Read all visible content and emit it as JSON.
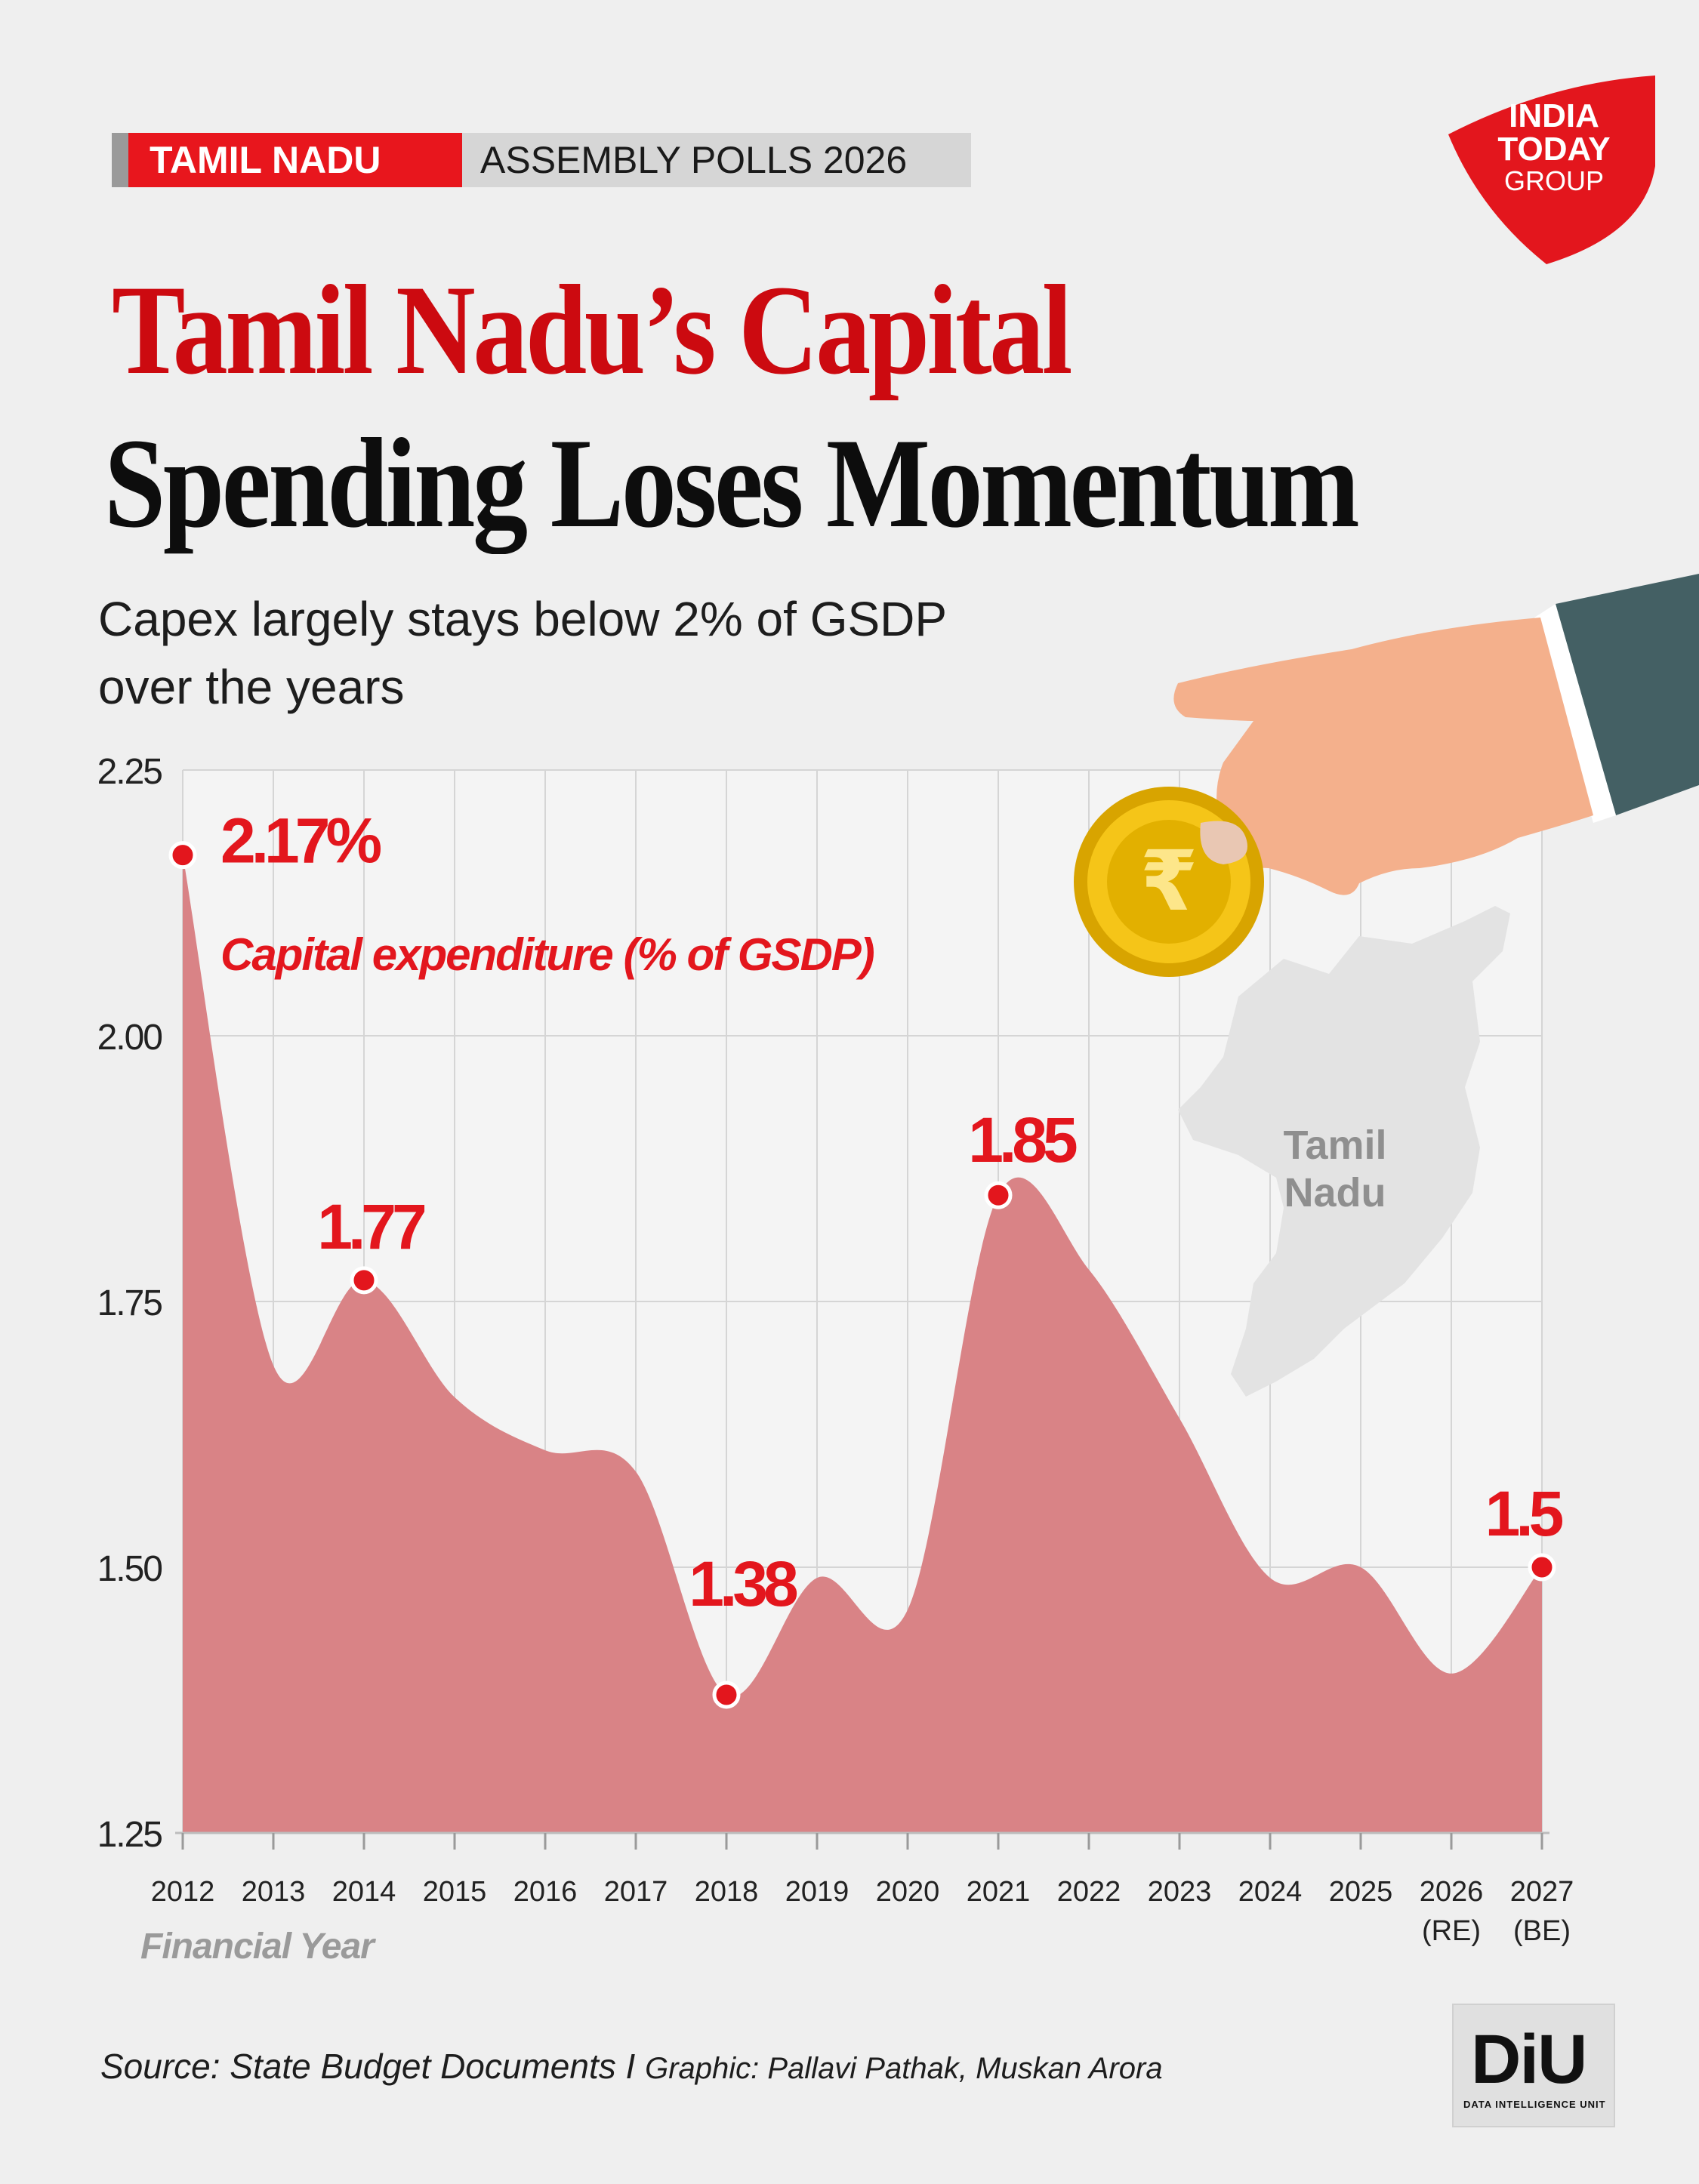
{
  "tag": {
    "state": "TAMIL NADU",
    "event": "ASSEMBLY POLLS  2026"
  },
  "logo": {
    "line1": "INDIA",
    "line2": "TODAY",
    "line3": "GROUP"
  },
  "title": {
    "line1": "Tamil Nadu’s Capital",
    "line2": "Spending Loses Momentum"
  },
  "subtitle": "Capex largely stays below 2% of GSDP over the years",
  "map_label": {
    "line1": "Tamil",
    "line2": "Nadu"
  },
  "coin_symbol": "₹",
  "chart_data": {
    "type": "area",
    "series_name": "Capital expenditure  (% of GSDP)",
    "xlabel": "Financial Year",
    "ylabel": "",
    "ylim": [
      1.25,
      2.25
    ],
    "yticks": [
      "2.25",
      "2.00",
      "1.75",
      "1.50",
      "1.25"
    ],
    "ytick_values": [
      2.25,
      2.0,
      1.75,
      1.5,
      1.25
    ],
    "categories": [
      "2012",
      "2013",
      "2014",
      "2015",
      "2016",
      "2017",
      "2018",
      "2019",
      "2020",
      "2021",
      "2022",
      "2023",
      "2024",
      "2025",
      "2026",
      "2027"
    ],
    "category_notes": [
      "",
      "",
      "",
      "",
      "",
      "",
      "",
      "",
      "",
      "",
      "",
      "",
      "",
      "",
      "(RE)",
      "(BE)"
    ],
    "values": [
      2.17,
      1.69,
      1.77,
      1.66,
      1.61,
      1.59,
      1.38,
      1.49,
      1.46,
      1.85,
      1.78,
      1.64,
      1.49,
      1.5,
      1.4,
      1.5
    ],
    "highlights": [
      {
        "index": 0,
        "label": "2.17%"
      },
      {
        "index": 2,
        "label": "1.77"
      },
      {
        "index": 6,
        "label": "1.38"
      },
      {
        "index": 9,
        "label": "1.85"
      },
      {
        "index": 15,
        "label": "1.5"
      }
    ],
    "colors": {
      "area": "#d98386",
      "marker": "#e3161d",
      "label": "#e3161d",
      "grid": "#d5d5d5"
    }
  },
  "source": {
    "main": "Source: State Budget Documents I ",
    "credit": "Graphic: Pallavi Pathak, Muskan Arora"
  },
  "diu": {
    "mark": "DiU",
    "sub": "DATA INTELLIGENCE UNIT"
  }
}
